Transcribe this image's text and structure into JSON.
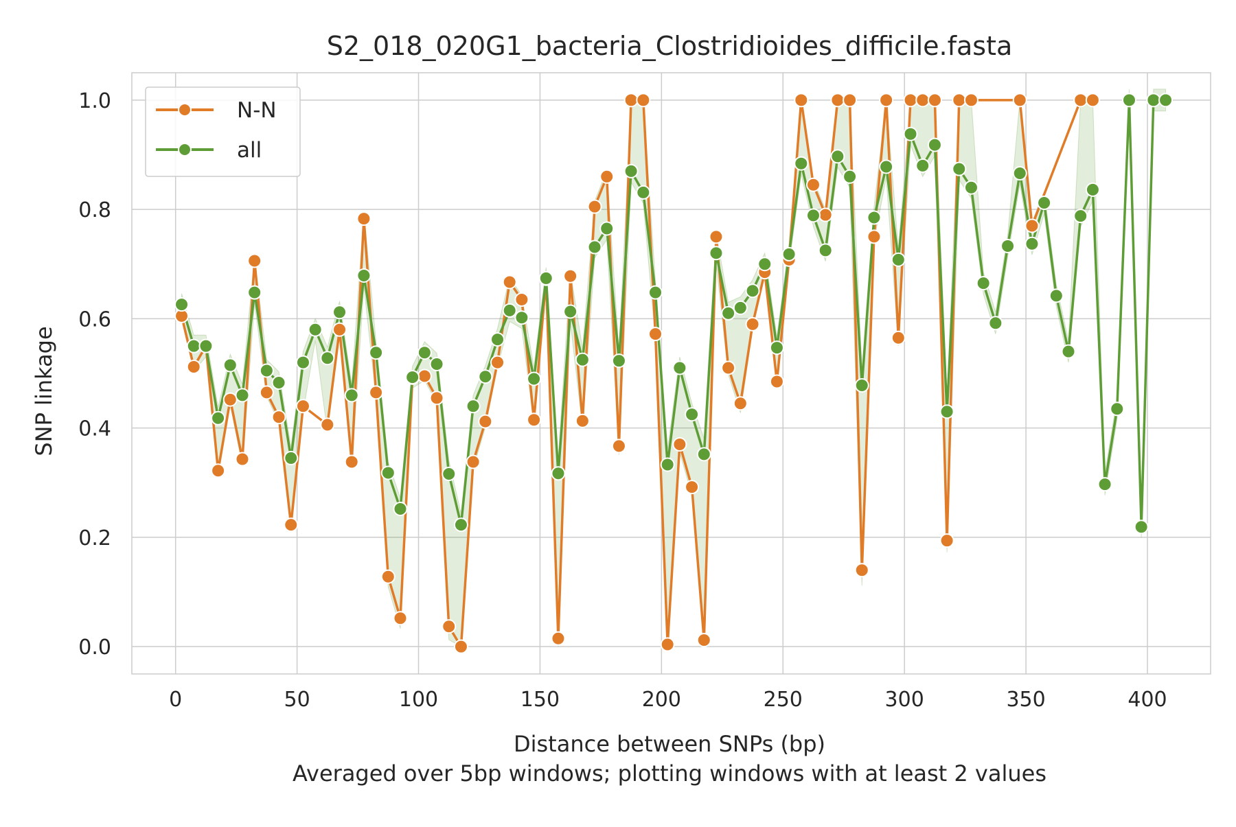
{
  "chart_data": {
    "type": "line",
    "title": "S2_018_020G1_bacteria_Clostridioides_difficile.fasta",
    "xlabel": "Distance between SNPs (bp)",
    "xlabel_sub": "Averaged over 5bp windows; plotting windows with at least 2 values",
    "ylabel": "SNP linkage",
    "xlim": [
      -18,
      426
    ],
    "ylim": [
      -0.05,
      1.05
    ],
    "xticks": [
      0,
      50,
      100,
      150,
      200,
      250,
      300,
      350,
      400
    ],
    "yticks": [
      0.0,
      0.2,
      0.4,
      0.6,
      0.8,
      1.0
    ],
    "xtick_labels": [
      "0",
      "50",
      "100",
      "150",
      "200",
      "250",
      "300",
      "350",
      "400"
    ],
    "ytick_labels": [
      "0.0",
      "0.2",
      "0.4",
      "0.6",
      "0.8",
      "1.0"
    ],
    "grid": true,
    "legend_position": "top-left",
    "series": [
      {
        "name": "N-N",
        "color": "#e07b28",
        "band": false,
        "points": [
          [
            2.5,
            0.605
          ],
          [
            7.5,
            0.512
          ],
          [
            12.5,
            0.55
          ],
          [
            17.5,
            0.322
          ],
          [
            22.5,
            0.452
          ],
          [
            27.5,
            0.343
          ],
          [
            32.5,
            0.706
          ],
          [
            37.5,
            0.465
          ],
          [
            42.5,
            0.42
          ],
          [
            47.5,
            0.223
          ],
          [
            52.5,
            0.44
          ],
          [
            62.5,
            0.406
          ],
          [
            67.5,
            0.58
          ],
          [
            72.5,
            0.338
          ],
          [
            77.5,
            0.783
          ],
          [
            82.5,
            0.465
          ],
          [
            87.5,
            0.128
          ],
          [
            92.5,
            0.052
          ],
          [
            97.5,
            0.492
          ],
          [
            102.5,
            0.495
          ],
          [
            107.5,
            0.455
          ],
          [
            112.5,
            0.037
          ],
          [
            117.5,
            0.0
          ],
          [
            122.5,
            0.338
          ],
          [
            127.5,
            0.412
          ],
          [
            132.5,
            0.52
          ],
          [
            137.5,
            0.667
          ],
          [
            142.5,
            0.635
          ],
          [
            147.5,
            0.415
          ],
          [
            152.5,
            0.673
          ],
          [
            157.5,
            0.015
          ],
          [
            162.5,
            0.678
          ],
          [
            167.5,
            0.413
          ],
          [
            172.5,
            0.805
          ],
          [
            177.5,
            0.86
          ],
          [
            182.5,
            0.367
          ],
          [
            187.5,
            1.0
          ],
          [
            192.5,
            1.0
          ],
          [
            197.5,
            0.572
          ],
          [
            202.5,
            0.004
          ],
          [
            207.5,
            0.37
          ],
          [
            212.5,
            0.292
          ],
          [
            217.5,
            0.012
          ],
          [
            222.5,
            0.75
          ],
          [
            227.5,
            0.51
          ],
          [
            232.5,
            0.445
          ],
          [
            237.5,
            0.59
          ],
          [
            242.5,
            0.685
          ],
          [
            247.5,
            0.485
          ],
          [
            252.5,
            0.708
          ],
          [
            257.5,
            1.0
          ],
          [
            262.5,
            0.845
          ],
          [
            267.5,
            0.79
          ],
          [
            272.5,
            1.0
          ],
          [
            277.5,
            1.0
          ],
          [
            282.5,
            0.14
          ],
          [
            287.5,
            0.75
          ],
          [
            292.5,
            1.0
          ],
          [
            297.5,
            0.565
          ],
          [
            302.5,
            1.0
          ],
          [
            307.5,
            1.0
          ],
          [
            312.5,
            1.0
          ],
          [
            317.5,
            0.194
          ],
          [
            322.5,
            1.0
          ],
          [
            327.5,
            1.0
          ],
          [
            347.5,
            1.0
          ],
          [
            352.5,
            0.77
          ],
          [
            372.5,
            1.0
          ],
          [
            377.5,
            1.0
          ]
        ]
      },
      {
        "name": "all",
        "color": "#5e9c36",
        "band": true,
        "band_color": "#5e9c36",
        "points": [
          [
            2.5,
            0.626
          ],
          [
            7.5,
            0.55
          ],
          [
            12.5,
            0.55
          ],
          [
            17.5,
            0.418
          ],
          [
            22.5,
            0.515
          ],
          [
            27.5,
            0.46
          ],
          [
            32.5,
            0.648
          ],
          [
            37.5,
            0.505
          ],
          [
            42.5,
            0.483
          ],
          [
            47.5,
            0.345
          ],
          [
            52.5,
            0.52
          ],
          [
            57.5,
            0.58
          ],
          [
            62.5,
            0.528
          ],
          [
            67.5,
            0.612
          ],
          [
            72.5,
            0.46
          ],
          [
            77.5,
            0.679
          ],
          [
            82.5,
            0.538
          ],
          [
            87.5,
            0.318
          ],
          [
            92.5,
            0.252
          ],
          [
            97.5,
            0.493
          ],
          [
            102.5,
            0.538
          ],
          [
            107.5,
            0.517
          ],
          [
            112.5,
            0.316
          ],
          [
            117.5,
            0.223
          ],
          [
            122.5,
            0.44
          ],
          [
            127.5,
            0.494
          ],
          [
            132.5,
            0.562
          ],
          [
            137.5,
            0.615
          ],
          [
            142.5,
            0.602
          ],
          [
            147.5,
            0.49
          ],
          [
            152.5,
            0.674
          ],
          [
            157.5,
            0.317
          ],
          [
            162.5,
            0.613
          ],
          [
            167.5,
            0.525
          ],
          [
            172.5,
            0.731
          ],
          [
            177.5,
            0.765
          ],
          [
            182.5,
            0.523
          ],
          [
            187.5,
            0.87
          ],
          [
            192.5,
            0.831
          ],
          [
            197.5,
            0.648
          ],
          [
            202.5,
            0.333
          ],
          [
            207.5,
            0.51
          ],
          [
            212.5,
            0.425
          ],
          [
            217.5,
            0.352
          ],
          [
            222.5,
            0.72
          ],
          [
            227.5,
            0.61
          ],
          [
            232.5,
            0.62
          ],
          [
            237.5,
            0.651
          ],
          [
            242.5,
            0.7
          ],
          [
            247.5,
            0.547
          ],
          [
            252.5,
            0.718
          ],
          [
            257.5,
            0.884
          ],
          [
            262.5,
            0.789
          ],
          [
            267.5,
            0.725
          ],
          [
            272.5,
            0.897
          ],
          [
            277.5,
            0.86
          ],
          [
            282.5,
            0.478
          ],
          [
            287.5,
            0.785
          ],
          [
            292.5,
            0.878
          ],
          [
            297.5,
            0.708
          ],
          [
            302.5,
            0.938
          ],
          [
            307.5,
            0.88
          ],
          [
            312.5,
            0.918
          ],
          [
            317.5,
            0.43
          ],
          [
            322.5,
            0.874
          ],
          [
            327.5,
            0.84
          ],
          [
            332.5,
            0.665
          ],
          [
            337.5,
            0.592
          ],
          [
            342.5,
            0.733
          ],
          [
            347.5,
            0.866
          ],
          [
            352.5,
            0.737
          ],
          [
            357.5,
            0.812
          ],
          [
            362.5,
            0.642
          ],
          [
            367.5,
            0.54
          ],
          [
            372.5,
            0.788
          ],
          [
            377.5,
            0.836
          ],
          [
            382.5,
            0.297
          ],
          [
            387.5,
            0.435
          ],
          [
            392.5,
            1.0
          ],
          [
            397.5,
            0.219
          ],
          [
            402.5,
            1.0
          ],
          [
            407.5,
            1.0
          ]
        ]
      }
    ]
  }
}
